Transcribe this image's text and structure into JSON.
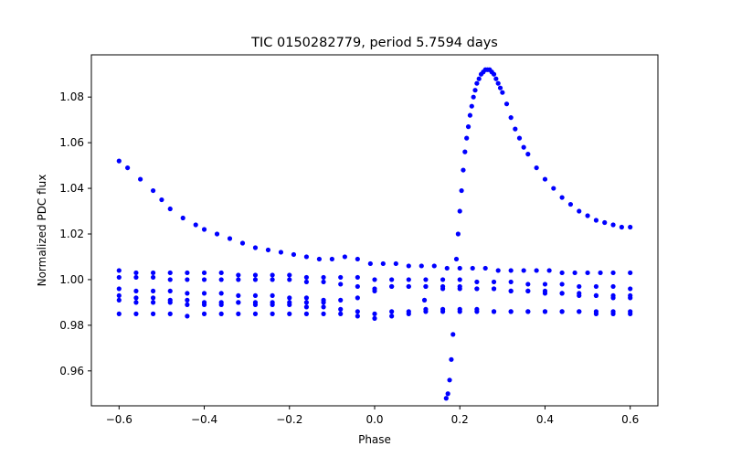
{
  "chart_data": {
    "type": "scatter",
    "title": "TIC 0150282779, period 5.7594 days",
    "xlabel": "Phase",
    "ylabel": "Normalized PDC flux",
    "xlim": [
      -0.665,
      0.665
    ],
    "ylim": [
      0.9447,
      1.0985
    ],
    "grid": false,
    "point_color": "#0000ff",
    "x_ticks": [
      {
        "value": -0.6,
        "label": "−0.6"
      },
      {
        "value": -0.4,
        "label": "−0.4"
      },
      {
        "value": -0.2,
        "label": "−0.2"
      },
      {
        "value": 0.0,
        "label": "0.0"
      },
      {
        "value": 0.2,
        "label": "0.2"
      },
      {
        "value": 0.4,
        "label": "0.4"
      },
      {
        "value": 0.6,
        "label": "0.6"
      }
    ],
    "y_ticks": [
      {
        "value": 0.96,
        "label": "0.96"
      },
      {
        "value": 0.98,
        "label": "0.98"
      },
      {
        "value": 1.0,
        "label": "1.00"
      },
      {
        "value": 1.02,
        "label": "1.02"
      },
      {
        "value": 1.04,
        "label": "1.04"
      },
      {
        "value": 1.06,
        "label": "1.06"
      },
      {
        "value": 1.08,
        "label": "1.08"
      }
    ],
    "series": [
      {
        "description": "decaying high branch",
        "x": [
          -0.6,
          -0.58,
          -0.55,
          -0.52,
          -0.5,
          -0.48,
          -0.45,
          -0.42,
          -0.4,
          -0.37,
          -0.34,
          -0.31,
          -0.28,
          -0.25,
          -0.22,
          -0.19,
          -0.16,
          -0.13,
          -0.1,
          -0.07,
          -0.04,
          -0.01,
          0.02,
          0.05,
          0.08,
          0.11,
          0.14,
          0.17,
          0.2,
          0.23,
          0.26,
          0.29,
          0.32,
          0.35,
          0.38,
          0.41,
          0.44,
          0.47,
          0.5,
          0.53,
          0.56,
          0.6
        ],
        "y": [
          1.052,
          1.049,
          1.044,
          1.039,
          1.035,
          1.031,
          1.027,
          1.024,
          1.022,
          1.02,
          1.018,
          1.016,
          1.014,
          1.013,
          1.012,
          1.011,
          1.01,
          1.009,
          1.009,
          1.01,
          1.009,
          1.007,
          1.007,
          1.007,
          1.006,
          1.006,
          1.006,
          1.005,
          1.005,
          1.005,
          1.005,
          1.004,
          1.004,
          1.004,
          1.004,
          1.004,
          1.003,
          1.003,
          1.003,
          1.003,
          1.003,
          1.003
        ]
      },
      {
        "description": "flat band near 1.003",
        "x": [
          -0.6,
          -0.56,
          -0.52,
          -0.48,
          -0.44,
          -0.4,
          -0.36,
          -0.32,
          -0.28,
          -0.24,
          -0.2,
          -0.16,
          -0.12,
          -0.08,
          -0.04,
          0.0,
          0.04,
          0.08,
          0.12,
          0.16,
          0.2,
          0.24,
          0.28,
          0.32,
          0.36,
          0.4,
          0.44,
          0.48,
          0.52,
          0.56,
          0.6
        ],
        "y": [
          1.004,
          1.003,
          1.003,
          1.003,
          1.003,
          1.003,
          1.003,
          1.002,
          1.002,
          1.002,
          1.002,
          1.001,
          1.001,
          1.001,
          1.001,
          1.0,
          1.0,
          1.0,
          1.0,
          1.0,
          1.0,
          0.999,
          0.999,
          0.999,
          0.998,
          0.998,
          0.998,
          0.997,
          0.997,
          0.997,
          0.996
        ]
      },
      {
        "description": "band near 1.000",
        "x": [
          -0.6,
          -0.56,
          -0.52,
          -0.48,
          -0.44,
          -0.4,
          -0.36,
          -0.32,
          -0.28,
          -0.24,
          -0.2,
          -0.16,
          -0.12,
          -0.08,
          -0.04,
          0.0,
          0.04,
          0.08,
          0.12,
          0.16,
          0.2,
          0.24,
          0.28,
          0.32,
          0.36,
          0.4,
          0.44,
          0.48,
          0.52,
          0.56,
          0.6
        ],
        "y": [
          1.001,
          1.001,
          1.001,
          1.0,
          1.0,
          1.0,
          1.0,
          1.0,
          1.0,
          1.0,
          1.0,
          0.999,
          0.999,
          0.998,
          0.997,
          0.996,
          0.997,
          0.997,
          0.997,
          0.996,
          0.996,
          0.996,
          0.996,
          0.995,
          0.995,
          0.995,
          0.994,
          0.994,
          0.993,
          0.993,
          0.993
        ]
      },
      {
        "description": "band near 0.996",
        "x": [
          -0.6,
          -0.56,
          -0.52,
          -0.48,
          -0.44,
          -0.4,
          -0.36,
          -0.32,
          -0.28,
          -0.24,
          -0.2,
          -0.16,
          -0.12,
          -0.08,
          -0.04,
          0.0,
          0.04,
          0.08,
          0.12,
          0.16,
          0.2,
          0.24,
          0.28,
          0.32,
          0.36,
          0.4,
          0.44,
          0.48,
          0.52,
          0.56,
          0.6
        ],
        "y": [
          0.996,
          0.995,
          0.995,
          0.995,
          0.994,
          0.994,
          0.994,
          0.993,
          0.993,
          0.993,
          0.992,
          0.992,
          0.991,
          0.991,
          0.992,
          0.995,
          0.997,
          0.997,
          0.997,
          0.997,
          0.997,
          0.996,
          0.996,
          0.995,
          0.995,
          0.994,
          0.994,
          0.993,
          0.993,
          0.992,
          0.992
        ]
      },
      {
        "description": "band near 0.993",
        "x": [
          -0.6,
          -0.56,
          -0.52,
          -0.48,
          -0.44,
          -0.4,
          -0.36,
          -0.32,
          -0.28,
          -0.24,
          -0.2,
          -0.16,
          -0.12,
          -0.08,
          -0.04,
          0.0,
          0.04,
          0.08,
          0.12,
          0.16,
          0.2,
          0.24,
          0.28,
          0.32,
          0.36,
          0.4,
          0.44,
          0.48,
          0.52,
          0.56,
          0.6
        ],
        "y": [
          0.993,
          0.992,
          0.992,
          0.991,
          0.991,
          0.99,
          0.99,
          0.99,
          0.989,
          0.989,
          0.989,
          0.988,
          0.988,
          0.987,
          0.986,
          0.985,
          0.986,
          0.986,
          0.987,
          0.987,
          0.987,
          0.987,
          0.986,
          0.986,
          0.986,
          0.986,
          0.986,
          0.986,
          0.986,
          0.986,
          0.986
        ]
      },
      {
        "description": "band near 0.990",
        "x": [
          -0.6,
          -0.56,
          -0.52,
          -0.48,
          -0.44,
          -0.4,
          -0.36,
          -0.32,
          -0.28,
          -0.24,
          -0.2,
          -0.16,
          -0.12
        ],
        "y": [
          0.991,
          0.99,
          0.99,
          0.99,
          0.989,
          0.989,
          0.989,
          0.99,
          0.99,
          0.99,
          0.99,
          0.99,
          0.99
        ]
      },
      {
        "description": "lowest band near 0.985",
        "x": [
          -0.6,
          -0.56,
          -0.52,
          -0.48,
          -0.44,
          -0.4,
          -0.36,
          -0.32,
          -0.28,
          -0.24,
          -0.2,
          -0.16,
          -0.12,
          -0.08,
          -0.04,
          0.0,
          0.04,
          0.08,
          0.12,
          0.16,
          0.2,
          0.24,
          0.28,
          0.32,
          0.36,
          0.4,
          0.44,
          0.48,
          0.52,
          0.56,
          0.6
        ],
        "y": [
          0.985,
          0.985,
          0.985,
          0.985,
          0.984,
          0.985,
          0.985,
          0.985,
          0.985,
          0.985,
          0.985,
          0.985,
          0.985,
          0.985,
          0.984,
          0.983,
          0.984,
          0.985,
          0.986,
          0.986,
          0.986,
          0.986,
          0.986,
          0.986,
          0.986,
          0.986,
          0.986,
          0.986,
          0.985,
          0.985,
          0.985
        ]
      },
      {
        "description": "eclipse dip and brightening peak",
        "x": [
          0.117,
          0.168,
          0.172,
          0.176,
          0.18,
          0.184,
          0.192,
          0.196,
          0.2,
          0.204,
          0.208,
          0.212,
          0.216,
          0.22,
          0.224,
          0.228,
          0.232,
          0.236,
          0.24,
          0.245,
          0.25,
          0.255,
          0.26,
          0.265,
          0.27,
          0.275,
          0.28,
          0.285,
          0.29,
          0.295,
          0.3,
          0.31,
          0.32,
          0.33,
          0.34,
          0.35,
          0.36,
          0.38,
          0.4,
          0.42,
          0.44,
          0.46,
          0.48,
          0.5,
          0.52,
          0.54,
          0.56,
          0.58,
          0.6
        ],
        "y": [
          0.991,
          0.948,
          0.95,
          0.956,
          0.965,
          0.976,
          1.009,
          1.02,
          1.03,
          1.039,
          1.048,
          1.056,
          1.062,
          1.067,
          1.072,
          1.076,
          1.08,
          1.083,
          1.086,
          1.088,
          1.09,
          1.091,
          1.092,
          1.092,
          1.092,
          1.091,
          1.09,
          1.088,
          1.086,
          1.084,
          1.082,
          1.077,
          1.071,
          1.066,
          1.062,
          1.058,
          1.055,
          1.049,
          1.044,
          1.04,
          1.036,
          1.033,
          1.03,
          1.028,
          1.026,
          1.025,
          1.024,
          1.023,
          1.023
        ]
      }
    ]
  }
}
